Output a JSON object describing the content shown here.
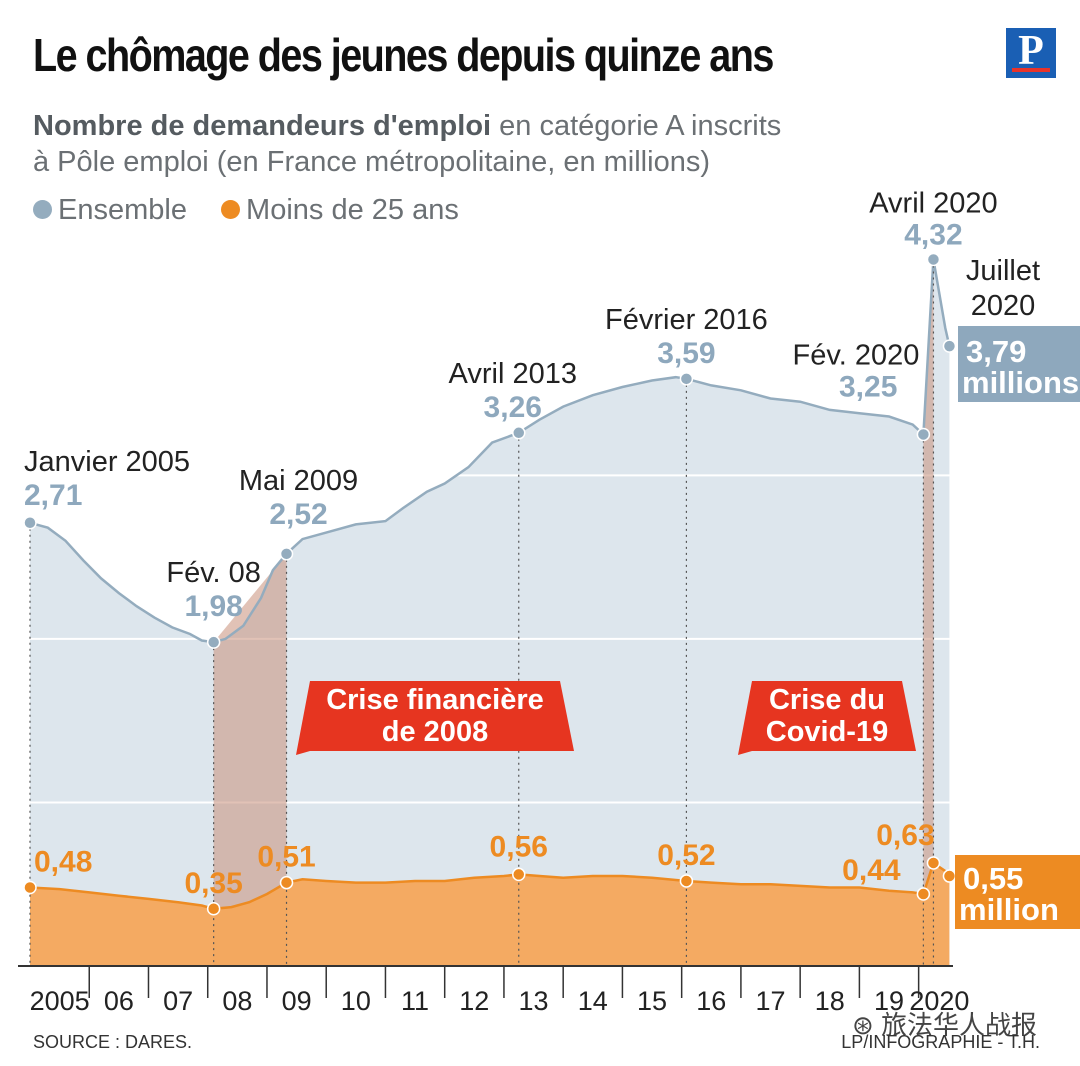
{
  "header": {
    "title": "Le chômage des jeunes depuis quinze ans",
    "logo_letter": "P",
    "subtitle_bold": "Nombre de demandeurs d'emploi",
    "subtitle_rest": " en catégorie A inscrits",
    "subtitle_line2": "à Pôle emploi (en France métropolitaine, en millions)"
  },
  "legend": {
    "ensemble": "Ensemble",
    "jeunes": "Moins de 25 ans"
  },
  "footer": {
    "source": "SOURCE : DARES.",
    "credit": "LP/INFOGRAPHIE - T.H.",
    "wechat": "旅法华人战报"
  },
  "colors": {
    "ensemble_line": "#94acbe",
    "ensemble_fill": "#dde6ed",
    "ensemble_label": "#8ea8bd",
    "jeunes_line": "#ed8b22",
    "jeunes_fill": "#f4a65b",
    "crisis_band": "#c98f7a",
    "badge_red": "#e63520",
    "grid": "#ffffff",
    "axis": "#333333"
  },
  "chart_data": {
    "type": "area",
    "xlim": [
      2005.0,
      2020.58
    ],
    "ylim": [
      0,
      4.5
    ],
    "x_tick_labels": [
      "2005",
      "06",
      "07",
      "08",
      "09",
      "10",
      "11",
      "12",
      "13",
      "14",
      "15",
      "16",
      "17",
      "18",
      "19",
      "2020"
    ],
    "x_tick_years": [
      2005.5,
      2006.5,
      2007.5,
      2008.5,
      2009.5,
      2010.5,
      2011.5,
      2012.5,
      2013.5,
      2014.5,
      2015.5,
      2016.5,
      2017.5,
      2018.5,
      2019.5,
      2020.35
    ],
    "gridlines_y": [
      1,
      2,
      3
    ],
    "series": [
      {
        "name": "Ensemble",
        "x": [
          2005.0,
          2005.3,
          2005.6,
          2005.9,
          2006.2,
          2006.5,
          2006.8,
          2007.1,
          2007.4,
          2007.7,
          2007.9,
          2008.1,
          2008.3,
          2008.6,
          2008.9,
          2009.1,
          2009.33,
          2009.6,
          2010.0,
          2010.5,
          2011.0,
          2011.3,
          2011.7,
          2012.0,
          2012.4,
          2012.8,
          2013.25,
          2013.6,
          2014.0,
          2014.5,
          2015.0,
          2015.5,
          2015.9,
          2016.08,
          2016.5,
          2017.0,
          2017.5,
          2018.0,
          2018.5,
          2019.0,
          2019.5,
          2019.9,
          2020.08,
          2020.25,
          2020.45,
          2020.52
        ],
        "y": [
          2.71,
          2.68,
          2.6,
          2.48,
          2.37,
          2.28,
          2.2,
          2.13,
          2.07,
          2.03,
          1.99,
          1.98,
          2.0,
          2.08,
          2.25,
          2.42,
          2.52,
          2.61,
          2.65,
          2.7,
          2.72,
          2.8,
          2.9,
          2.95,
          3.05,
          3.2,
          3.26,
          3.34,
          3.42,
          3.49,
          3.54,
          3.58,
          3.6,
          3.59,
          3.55,
          3.52,
          3.47,
          3.45,
          3.4,
          3.38,
          3.36,
          3.31,
          3.25,
          4.32,
          3.9,
          3.79
        ]
      },
      {
        "name": "Moins de 25 ans",
        "x": [
          2005.0,
          2005.5,
          2006.0,
          2006.5,
          2007.0,
          2007.5,
          2007.9,
          2008.1,
          2008.4,
          2008.7,
          2009.0,
          2009.33,
          2009.6,
          2010.0,
          2010.5,
          2011.0,
          2011.5,
          2012.0,
          2012.5,
          2013.0,
          2013.25,
          2013.6,
          2014.0,
          2014.5,
          2015.0,
          2015.5,
          2016.08,
          2016.5,
          2017.0,
          2017.5,
          2018.0,
          2018.5,
          2019.0,
          2019.5,
          2019.9,
          2020.08,
          2020.25,
          2020.45,
          2020.52
        ],
        "y": [
          0.48,
          0.47,
          0.45,
          0.43,
          0.41,
          0.39,
          0.37,
          0.35,
          0.36,
          0.39,
          0.44,
          0.51,
          0.53,
          0.52,
          0.51,
          0.51,
          0.52,
          0.52,
          0.54,
          0.55,
          0.56,
          0.55,
          0.54,
          0.55,
          0.55,
          0.54,
          0.52,
          0.51,
          0.5,
          0.5,
          0.49,
          0.48,
          0.48,
          0.46,
          0.45,
          0.44,
          0.63,
          0.58,
          0.55
        ]
      }
    ],
    "crisis_bands": [
      {
        "from": 2008.1,
        "to": 2009.33,
        "label_lines": [
          "Crise financière",
          "de 2008"
        ]
      },
      {
        "from": 2020.08,
        "to": 2020.25,
        "label_lines": [
          "Crise du",
          "Covid-19"
        ]
      }
    ],
    "annotations": [
      {
        "series": "Ensemble",
        "x": 2005.0,
        "y": 2.71,
        "label": "Janvier 2005",
        "value": "2,71"
      },
      {
        "series": "Ensemble",
        "x": 2008.1,
        "y": 1.98,
        "label": "Fév. 08",
        "value": "1,98"
      },
      {
        "series": "Ensemble",
        "x": 2009.33,
        "y": 2.52,
        "label": "Mai 2009",
        "value": "2,52"
      },
      {
        "series": "Ensemble",
        "x": 2013.25,
        "y": 3.26,
        "label": "Avril 2013",
        "value": "3,26"
      },
      {
        "series": "Ensemble",
        "x": 2016.08,
        "y": 3.59,
        "label": "Février 2016",
        "value": "3,59"
      },
      {
        "series": "Ensemble",
        "x": 2020.08,
        "y": 3.25,
        "label": "Fév. 2020",
        "value": "3,25"
      },
      {
        "series": "Ensemble",
        "x": 2020.25,
        "y": 4.32,
        "label": "Avril 2020",
        "value": "4,32"
      },
      {
        "series": "Ensemble",
        "x": 2020.52,
        "y": 3.79,
        "label_lines": [
          "Juillet",
          "2020"
        ],
        "value_lines": [
          "3,79",
          "millions"
        ]
      },
      {
        "series": "Moins de 25 ans",
        "x": 2005.0,
        "y": 0.48,
        "value": "0,48"
      },
      {
        "series": "Moins de 25 ans",
        "x": 2008.1,
        "y": 0.35,
        "value": "0,35"
      },
      {
        "series": "Moins de 25 ans",
        "x": 2009.33,
        "y": 0.51,
        "value": "0,51"
      },
      {
        "series": "Moins de 25 ans",
        "x": 2013.25,
        "y": 0.56,
        "value": "0,56"
      },
      {
        "series": "Moins de 25 ans",
        "x": 2016.08,
        "y": 0.52,
        "value": "0,52"
      },
      {
        "series": "Moins de 25 ans",
        "x": 2020.08,
        "y": 0.44,
        "value": "0,44"
      },
      {
        "series": "Moins de 25 ans",
        "x": 2020.25,
        "y": 0.63,
        "value": "0,63"
      },
      {
        "series": "Moins de 25 ans",
        "x": 2020.52,
        "y": 0.55,
        "value_lines": [
          "0,55",
          "million"
        ]
      }
    ]
  }
}
